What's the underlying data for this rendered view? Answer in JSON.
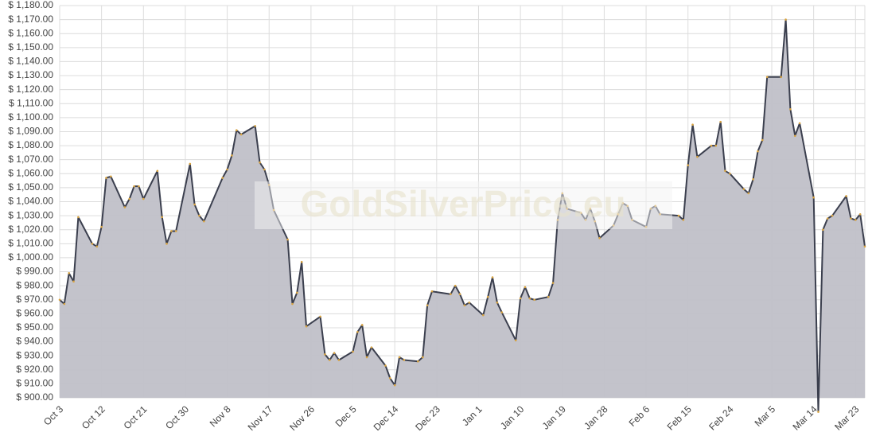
{
  "chart_data": {
    "type": "area",
    "watermark": "GoldSilverPrice.eu",
    "x": [
      "Oct 3",
      "Oct 4",
      "Oct 5",
      "Oct 6",
      "Oct 7",
      "Oct 10",
      "Oct 11",
      "Oct 12",
      "Oct 13",
      "Oct 14",
      "Oct 17",
      "Oct 18",
      "Oct 19",
      "Oct 20",
      "Oct 21",
      "Oct 24",
      "Oct 25",
      "Oct 26",
      "Oct 27",
      "Oct 28",
      "Oct 31",
      "Nov 1",
      "Nov 2",
      "Nov 3",
      "Nov 7",
      "Nov 8",
      "Nov 9",
      "Nov 10",
      "Nov 11",
      "Nov 14",
      "Nov 15",
      "Nov 16",
      "Nov 17",
      "Nov 18",
      "Nov 21",
      "Nov 22",
      "Nov 23",
      "Nov 24",
      "Nov 25",
      "Nov 28",
      "Nov 29",
      "Nov 30",
      "Dec 1",
      "Dec 2",
      "Dec 5",
      "Dec 6",
      "Dec 7",
      "Dec 8",
      "Dec 9",
      "Dec 12",
      "Dec 13",
      "Dec 14",
      "Dec 15",
      "Dec 16",
      "Dec 19",
      "Dec 20",
      "Dec 21",
      "Dec 22",
      "Dec 26",
      "Dec 27",
      "Dec 28",
      "Dec 29",
      "Dec 30",
      "Jan 2",
      "Jan 3",
      "Jan 4",
      "Jan 5",
      "Jan 6",
      "Jan 9",
      "Jan 10",
      "Jan 11",
      "Jan 12",
      "Jan 13",
      "Jan 16",
      "Jan 17",
      "Jan 18",
      "Jan 19",
      "Jan 20",
      "Jan 23",
      "Jan 24",
      "Jan 25",
      "Jan 26",
      "Jan 27",
      "Jan 30",
      "Jan 31",
      "Feb 1",
      "Feb 2",
      "Feb 3",
      "Feb 6",
      "Feb 7",
      "Feb 8",
      "Feb 9",
      "Feb 13",
      "Feb 14",
      "Feb 15",
      "Feb 16",
      "Feb 17",
      "Feb 20",
      "Feb 21",
      "Feb 22",
      "Feb 23",
      "Feb 24",
      "Feb 27",
      "Feb 28",
      "Mar 1",
      "Mar 2",
      "Mar 3",
      "Mar 4",
      "Mar 7",
      "Mar 8",
      "Mar 9",
      "Mar 10",
      "Mar 11",
      "Mar 14",
      "Mar 15",
      "Mar 16",
      "Mar 17",
      "Mar 18",
      "Mar 21",
      "Mar 22",
      "Mar 23",
      "Mar 24",
      "Mar 25"
    ],
    "values": [
      970,
      967,
      989,
      983,
      1029,
      1010,
      1008,
      1022,
      1057,
      1058,
      1036,
      1042,
      1051,
      1051,
      1042,
      1062,
      1029,
      1010,
      1019,
      1019,
      1067,
      1038,
      1030,
      1026,
      1057,
      1063,
      1073,
      1091,
      1088,
      1094,
      1068,
      1063,
      1052,
      1034,
      1013,
      967,
      975,
      997,
      951,
      958,
      931,
      927,
      932,
      927,
      933,
      947,
      952,
      929,
      936,
      923,
      914,
      909,
      929,
      927,
      926,
      929,
      966,
      976,
      974,
      980,
      974,
      966,
      968,
      959,
      972,
      986,
      968,
      961,
      941,
      971,
      979,
      971,
      970,
      972,
      982,
      1027,
      1046,
      1035,
      1032,
      1027,
      1035,
      1026,
      1014,
      1023,
      1031,
      1039,
      1037,
      1027,
      1022,
      1035,
      1037,
      1031,
      1030,
      1027,
      1066,
      1095,
      1072,
      1080,
      1080,
      1097,
      1062,
      1060,
      1049,
      1046,
      1056,
      1076,
      1084,
      1129,
      1129,
      1170,
      1106,
      1087,
      1096,
      1043,
      890,
      1020,
      1028,
      1030,
      1044,
      1028,
      1027,
      1031,
      1008
    ],
    "xticks": [
      "Oct 3",
      "Oct 12",
      "Oct 21",
      "Oct 30",
      "Nov 8",
      "Nov 17",
      "Nov 26",
      "Dec 5",
      "Dec 14",
      "Dec 23",
      "Jan 1",
      "Jan 10",
      "Jan 19",
      "Jan 28",
      "Feb 6",
      "Feb 15",
      "Feb 24",
      "Mar 5",
      "Mar 14",
      "Mar 23"
    ],
    "ylim": [
      900,
      1180
    ],
    "yticks": [
      {
        "value": 900,
        "label": "$ 900.00"
      },
      {
        "value": 910,
        "label": "$ 910.00"
      },
      {
        "value": 920,
        "label": "$ 920.00"
      },
      {
        "value": 930,
        "label": "$ 930.00"
      },
      {
        "value": 940,
        "label": "$ 940.00"
      },
      {
        "value": 950,
        "label": "$ 950.00"
      },
      {
        "value": 960,
        "label": "$ 960.00"
      },
      {
        "value": 970,
        "label": "$ 970.00"
      },
      {
        "value": 980,
        "label": "$ 980.00"
      },
      {
        "value": 990,
        "label": "$ 990.00"
      },
      {
        "value": 1000,
        "label": "$ 1,000.00"
      },
      {
        "value": 1010,
        "label": "$ 1,010.00"
      },
      {
        "value": 1020,
        "label": "$ 1,020.00"
      },
      {
        "value": 1030,
        "label": "$ 1,030.00"
      },
      {
        "value": 1040,
        "label": "$ 1,040.00"
      },
      {
        "value": 1050,
        "label": "$ 1,050.00"
      },
      {
        "value": 1060,
        "label": "$ 1,060.00"
      },
      {
        "value": 1070,
        "label": "$ 1,070.00"
      },
      {
        "value": 1080,
        "label": "$ 1,080.00"
      },
      {
        "value": 1090,
        "label": "$ 1,090.00"
      },
      {
        "value": 1100,
        "label": "$ 1,100.00"
      },
      {
        "value": 1110,
        "label": "$ 1,110.00"
      },
      {
        "value": 1120,
        "label": "$ 1,120.00"
      },
      {
        "value": 1130,
        "label": "$ 1,130.00"
      },
      {
        "value": 1140,
        "label": "$ 1,140.00"
      },
      {
        "value": 1150,
        "label": "$ 1,150.00"
      },
      {
        "value": 1160,
        "label": "$ 1,160.00"
      },
      {
        "value": 1170,
        "label": "$ 1,170.00"
      },
      {
        "value": 1180,
        "label": "$ 1,180.00"
      }
    ],
    "color": "#3b3f4e",
    "fill": "#c0c0c8",
    "marker_color": "#d9a441",
    "grid": true
  }
}
